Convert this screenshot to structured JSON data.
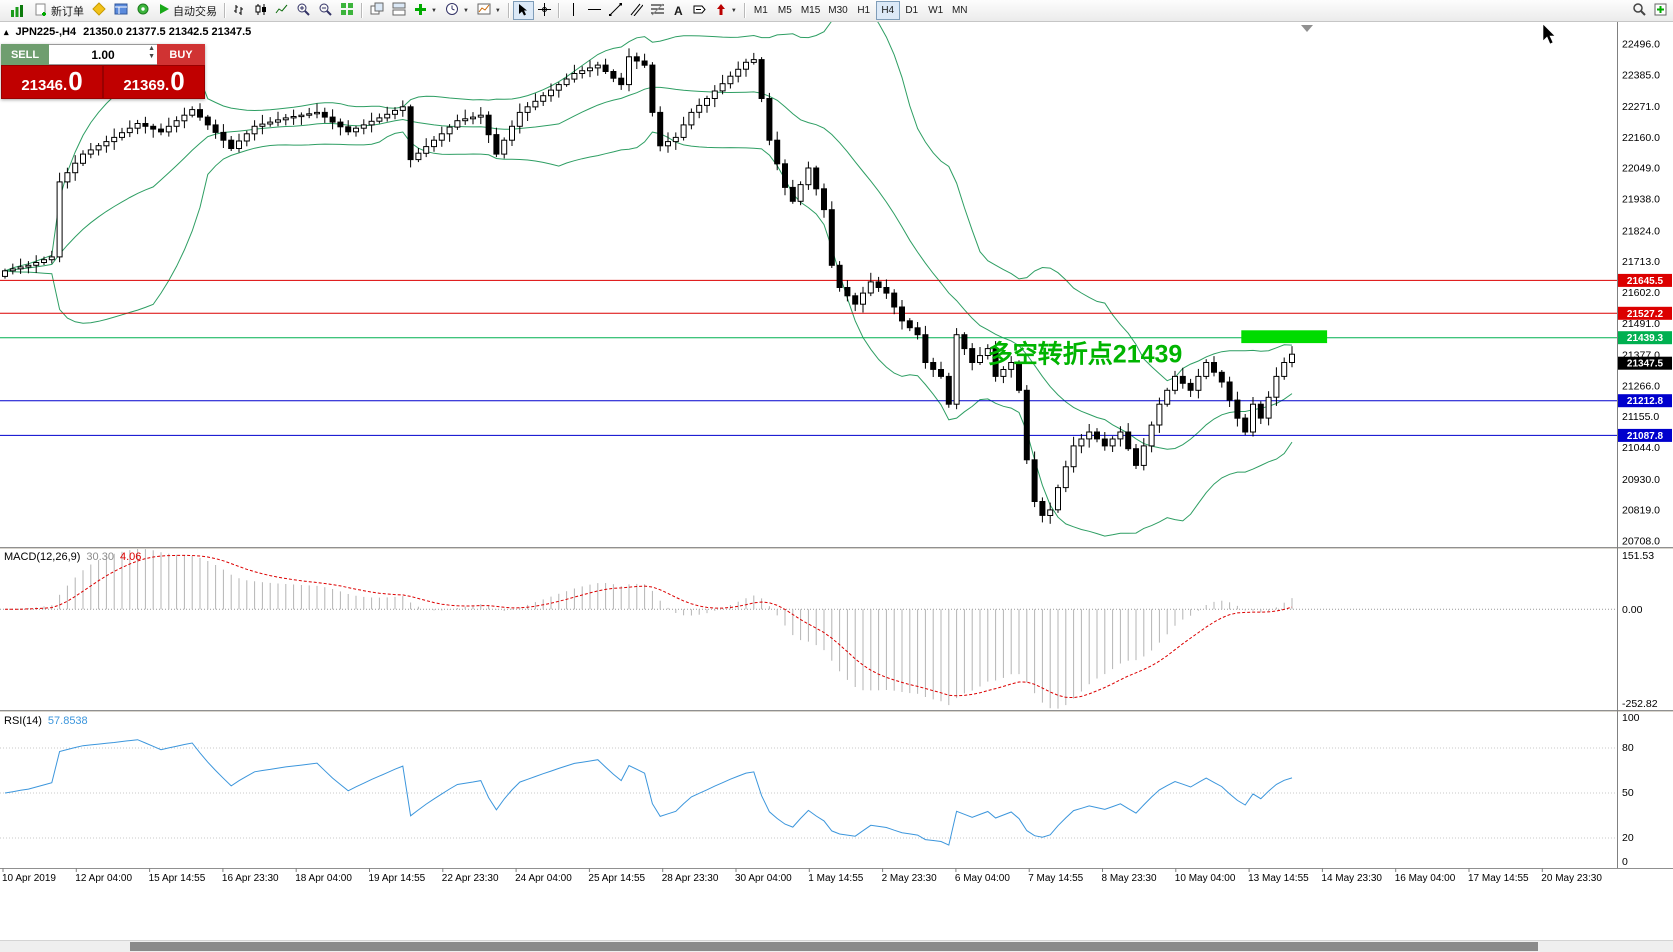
{
  "toolbar": {
    "new_order_label": "新订单",
    "autotrading_label": "自动交易",
    "text_tool_label": "A",
    "timeframes": [
      "M1",
      "M5",
      "M15",
      "M30",
      "H1",
      "H4",
      "D1",
      "W1",
      "MN"
    ],
    "active_timeframe": "H4"
  },
  "chart_header": {
    "symbol_period": "JPN225-,H4",
    "ohlc": "21350.0 21377.5 21342.5 21347.5"
  },
  "trade_panel": {
    "sell_label": "SELL",
    "buy_label": "BUY",
    "volume": "1.00",
    "sell_price_main": "21346.",
    "sell_price_big": "0",
    "buy_price_main": "21369.",
    "buy_price_big": "0"
  },
  "panes": {
    "macd": {
      "title": "MACD(12,26,9)",
      "value_macd": "30.30",
      "value_signal": "4.06",
      "axis_labels": [
        "151.53",
        "0.00",
        "-252.82"
      ]
    },
    "rsi": {
      "title": "RSI(14)",
      "value": "57.8538",
      "axis_labels": [
        "100",
        "80",
        "50",
        "20",
        "0"
      ],
      "level_lines": [
        80,
        50,
        20
      ]
    }
  },
  "chart_data": {
    "type": "candlestick",
    "symbol": "JPN225-",
    "timeframe": "H4",
    "open": 21350.0,
    "high": 21377.5,
    "low": 21342.5,
    "close": 21347.5,
    "current_price": 21347.5,
    "price_axis_ticks": [
      22496,
      22385,
      22271,
      22160,
      22049,
      21938,
      21824,
      21713,
      21602,
      21491,
      21377,
      21266,
      21155,
      21044,
      20930,
      20819,
      20708
    ],
    "levels": [
      {
        "price": 21645.5,
        "color": "#dc0000"
      },
      {
        "price": 21527.2,
        "color": "#dc0000"
      },
      {
        "price": 21439.3,
        "color": "#00b050"
      },
      {
        "price": 21212.8,
        "color": "#0000cd"
      },
      {
        "price": 21087.8,
        "color": "#0000cd"
      }
    ],
    "annotation": {
      "text": "多空转折点21439",
      "color": "#00b400",
      "price": 21350,
      "anchor_index": 126
    },
    "highlight_rect": {
      "price_top": 21466,
      "price_bottom": 21420,
      "from_index": 158.5,
      "to_index": 169.5,
      "color": "#00dc00"
    },
    "time_labels": [
      "10 Apr 2019",
      "12 Apr 04:00",
      "15 Apr 14:55",
      "16 Apr 23:30",
      "18 Apr 04:00",
      "19 Apr 14:55",
      "22 Apr 23:30",
      "24 Apr 04:00",
      "25 Apr 14:55",
      "28 Apr 23:30",
      "30 Apr 04:00",
      "1 May 14:55",
      "2 May 23:30",
      "6 May 04:00",
      "7 May 14:55",
      "8 May 23:30",
      "10 May 04:00",
      "13 May 14:55",
      "14 May 23:30",
      "16 May 04:00",
      "17 May 14:55",
      "20 May 23:30"
    ],
    "indicators": {
      "bollinger": {
        "period": 20,
        "deviation": 2
      },
      "macd": [
        12,
        26,
        9
      ],
      "rsi": 14
    },
    "first_open": 21660,
    "closes": [
      21680,
      21687,
      21694,
      21700,
      21710,
      21720,
      21730,
      22000,
      22033,
      22067,
      22100,
      22115,
      22130,
      22145,
      22160,
      22177,
      22193,
      22210,
      22200,
      22190,
      22180,
      22200,
      22220,
      22240,
      22260,
      22233,
      22205,
      22178,
      22150,
      22120,
      22147,
      22173,
      22200,
      22208,
      22215,
      22223,
      22230,
      22235,
      22240,
      22245,
      22250,
      22233,
      22215,
      22198,
      22180,
      22193,
      22205,
      22218,
      22230,
      22243,
      22257,
      22270,
      22080,
      22103,
      22127,
      22150,
      22173,
      22197,
      22220,
      22227,
      22233,
      22240,
      22170,
      22100,
      22150,
      22200,
      22250,
      22270,
      22290,
      22310,
      22330,
      22350,
      22370,
      22390,
      22400,
      22410,
      22420,
      22397,
      22373,
      22350,
      22450,
      22435,
      22420,
      22250,
      22130,
      22145,
      22160,
      22205,
      22250,
      22275,
      22300,
      22327,
      22353,
      22380,
      22405,
      22430,
      22440,
      22300,
      22150,
      22065,
      21980,
      21930,
      21990,
      22050,
      21975,
      21900,
      21700,
      21620,
      21590,
      21560,
      21600,
      21640,
      21620,
      21600,
      21550,
      21500,
      21475,
      21450,
      21350,
      21325,
      21300,
      21200,
      21450,
      21400,
      21350,
      21375,
      21400,
      21300,
      21325,
      21350,
      21250,
      21000,
      20850,
      20800,
      20820,
      20900,
      20975,
      21050,
      21075,
      21100,
      21075,
      21050,
      21075,
      21100,
      21040,
      20980,
      21050,
      21125,
      21200,
      21250,
      21300,
      21275,
      21250,
      21300,
      21350,
      21315,
      21280,
      21215,
      21150,
      21100,
      21200,
      21150,
      21225,
      21300,
      21350,
      21380
    ]
  }
}
